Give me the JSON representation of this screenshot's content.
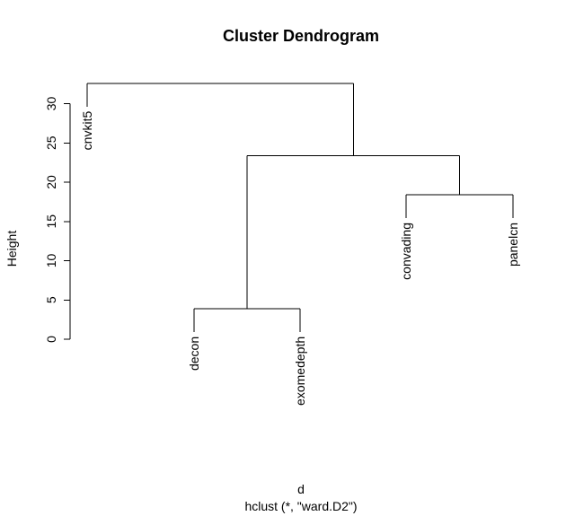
{
  "chart_data": {
    "type": "dendrogram",
    "title": "Cluster Dendrogram",
    "xlabel": "d",
    "sublabel": "hclust (*, \"ward.D2\")",
    "ylabel": "Height",
    "ylim": [
      0,
      33
    ],
    "yticks": [
      0,
      5,
      10,
      15,
      20,
      25,
      30
    ],
    "leaves": [
      "cnvkit5",
      "decon",
      "exomedepth",
      "convading",
      "panelcn"
    ],
    "merges": [
      {
        "left": "decon",
        "right": "exomedepth",
        "height": 3.9
      },
      {
        "left": "convading",
        "right": "panelcn",
        "height": 18.4
      },
      {
        "left": "(decon,exomedepth)",
        "right": "(convading,panelcn)",
        "height": 23.4
      },
      {
        "left": "cnvkit5",
        "right": "(decon,exomedepth,convading,panelcn)",
        "height": 32.6
      }
    ]
  }
}
